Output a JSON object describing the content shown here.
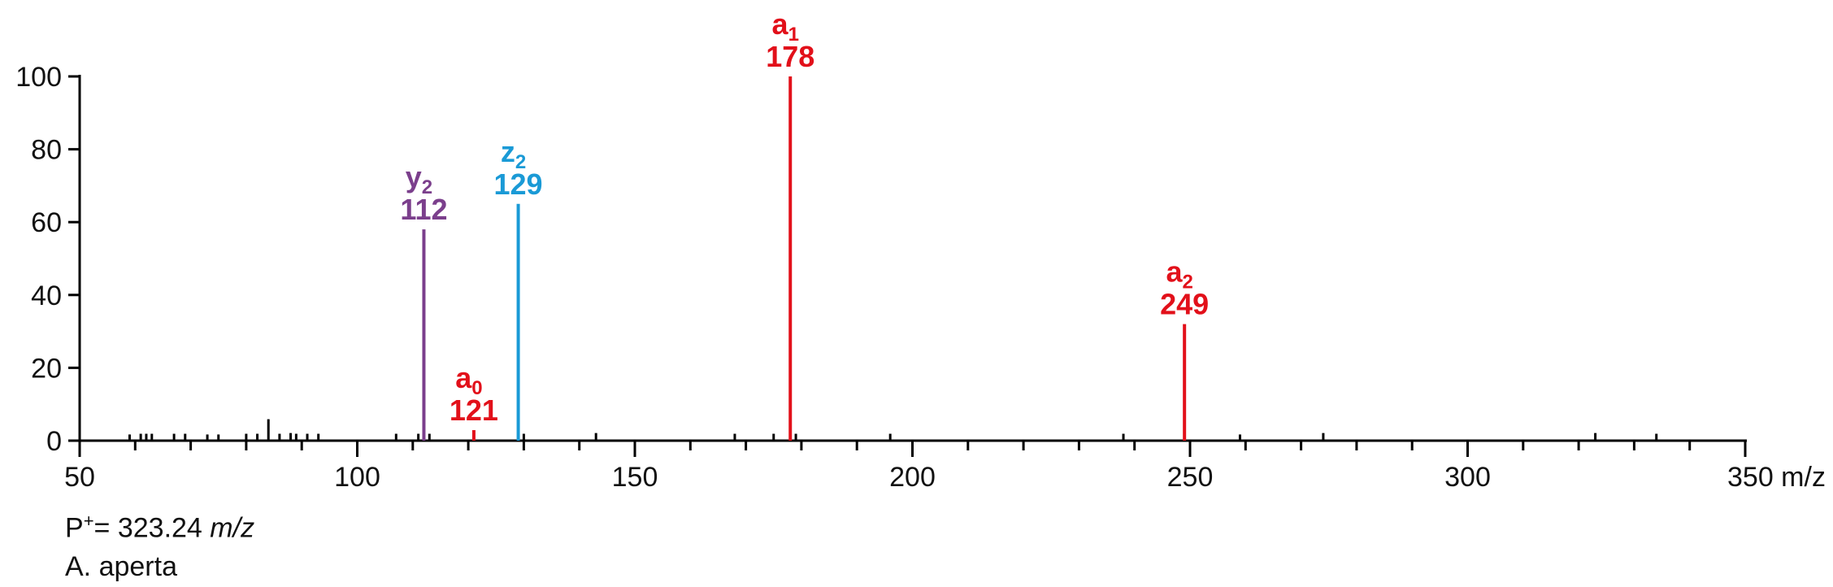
{
  "chart_data": {
    "type": "bar",
    "xlim": [
      50,
      350
    ],
    "ylim": [
      0,
      100
    ],
    "x_ticks": [
      50,
      100,
      150,
      200,
      250,
      300,
      350
    ],
    "x_tick_labels": [
      "50",
      "100",
      "150",
      "200",
      "250",
      "300",
      "350 m/z"
    ],
    "y_ticks": [
      0,
      20,
      40,
      60,
      80,
      100
    ],
    "y_tick_labels": [
      "0",
      "20",
      "40",
      "60",
      "80",
      "100"
    ],
    "grid": false,
    "colors": {
      "y": "#7b3f8c",
      "z": "#1a9ad6",
      "a": "#e2101a",
      "other": "#000000"
    },
    "peaks": [
      {
        "mz": 112,
        "intensity": 58,
        "ion": "y",
        "sub": "2",
        "label": "112",
        "color": "#7b3f8c"
      },
      {
        "mz": 121,
        "intensity": 2,
        "ion": "a",
        "sub": "0",
        "label": "121",
        "color": "#e2101a"
      },
      {
        "mz": 129,
        "intensity": 65,
        "ion": "z",
        "sub": "2",
        "label": "129",
        "color": "#1a9ad6"
      },
      {
        "mz": 178,
        "intensity": 100,
        "ion": "a",
        "sub": "1",
        "label": "178",
        "color": "#e2101a"
      },
      {
        "mz": 249,
        "intensity": 32,
        "ion": "a",
        "sub": "2",
        "label": "249",
        "color": "#e2101a"
      }
    ],
    "minor_peaks": [
      {
        "mz": 59,
        "intensity": 0.8
      },
      {
        "mz": 61,
        "intensity": 1
      },
      {
        "mz": 62,
        "intensity": 1
      },
      {
        "mz": 63,
        "intensity": 1
      },
      {
        "mz": 67,
        "intensity": 1
      },
      {
        "mz": 69,
        "intensity": 1
      },
      {
        "mz": 73,
        "intensity": 0.8
      },
      {
        "mz": 75,
        "intensity": 0.8
      },
      {
        "mz": 80,
        "intensity": 1
      },
      {
        "mz": 82,
        "intensity": 1
      },
      {
        "mz": 84,
        "intensity": 5
      },
      {
        "mz": 86,
        "intensity": 1
      },
      {
        "mz": 88,
        "intensity": 1.2
      },
      {
        "mz": 89,
        "intensity": 1
      },
      {
        "mz": 91,
        "intensity": 1
      },
      {
        "mz": 93,
        "intensity": 1
      },
      {
        "mz": 107,
        "intensity": 1
      },
      {
        "mz": 111,
        "intensity": 1
      },
      {
        "mz": 113,
        "intensity": 1
      },
      {
        "mz": 130,
        "intensity": 1
      },
      {
        "mz": 143,
        "intensity": 1.2
      },
      {
        "mz": 168,
        "intensity": 1
      },
      {
        "mz": 175,
        "intensity": 1
      },
      {
        "mz": 179,
        "intensity": 1
      },
      {
        "mz": 196,
        "intensity": 1
      },
      {
        "mz": 238,
        "intensity": 1
      },
      {
        "mz": 259,
        "intensity": 0.8
      },
      {
        "mz": 274,
        "intensity": 1.2
      },
      {
        "mz": 323,
        "intensity": 1.2
      },
      {
        "mz": 334,
        "intensity": 1
      }
    ]
  },
  "footer": {
    "precursor_prefix": "P",
    "precursor_sup": "+",
    "precursor_value": "= 323.24 ",
    "precursor_unit": "m/z",
    "species": "A. aperta"
  }
}
